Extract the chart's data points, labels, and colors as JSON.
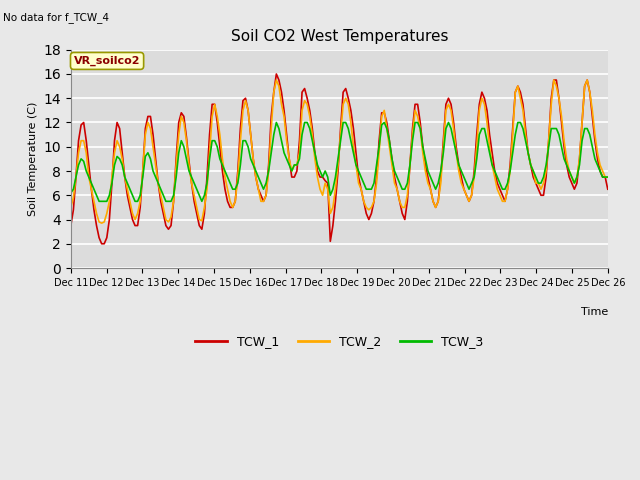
{
  "title": "Soil CO2 West Temperatures",
  "no_data_text": "No data for f_TCW_4",
  "annotation_text": "VR_soilco2",
  "ylabel": "Soil Temperature (C)",
  "xlabel": "Time",
  "ylim": [
    0,
    18
  ],
  "yticks": [
    0,
    2,
    4,
    6,
    8,
    10,
    12,
    14,
    16,
    18
  ],
  "background_color": "#e8e8e8",
  "plot_bg_color": "#dcdcdc",
  "legend": [
    "TCW_1",
    "TCW_2",
    "TCW_3"
  ],
  "colors": [
    "#cc0000",
    "#ffaa00",
    "#00bb00"
  ],
  "line_width": 1.2,
  "TCW_1": [
    3.5,
    4.8,
    7.5,
    10.5,
    11.8,
    12.0,
    10.5,
    8.5,
    6.5,
    4.8,
    3.5,
    2.5,
    2.0,
    2.0,
    2.5,
    4.0,
    7.0,
    10.5,
    12.0,
    11.5,
    9.5,
    7.5,
    6.0,
    5.0,
    4.0,
    3.5,
    3.5,
    5.0,
    8.0,
    11.5,
    12.5,
    12.5,
    11.0,
    9.0,
    7.0,
    5.5,
    4.5,
    3.5,
    3.2,
    3.5,
    5.5,
    9.0,
    12.0,
    12.8,
    12.5,
    10.8,
    8.8,
    7.0,
    5.5,
    4.5,
    3.5,
    3.2,
    4.5,
    7.5,
    11.0,
    13.5,
    13.5,
    12.0,
    10.0,
    8.0,
    6.5,
    5.5,
    5.0,
    5.0,
    5.5,
    8.0,
    11.5,
    13.8,
    14.0,
    13.0,
    11.0,
    9.0,
    7.5,
    6.5,
    6.0,
    5.5,
    6.0,
    8.5,
    12.5,
    14.5,
    16.0,
    15.5,
    14.5,
    13.0,
    11.0,
    9.0,
    7.5,
    7.5,
    8.0,
    10.5,
    14.5,
    14.8,
    14.0,
    13.0,
    11.5,
    9.5,
    8.0,
    7.5,
    7.5,
    7.2,
    7.0,
    2.2,
    3.5,
    5.5,
    8.0,
    11.5,
    14.5,
    14.8,
    14.0,
    13.0,
    11.5,
    9.5,
    7.5,
    6.5,
    5.5,
    4.5,
    4.0,
    4.5,
    5.5,
    7.5,
    10.5,
    12.8,
    12.8,
    12.0,
    10.5,
    9.0,
    7.5,
    6.5,
    5.5,
    4.5,
    4.0,
    5.5,
    8.5,
    11.5,
    13.5,
    13.5,
    12.0,
    10.0,
    8.5,
    7.5,
    6.5,
    5.5,
    5.0,
    5.5,
    7.5,
    10.5,
    13.5,
    14.0,
    13.5,
    12.0,
    10.0,
    8.5,
    7.5,
    6.5,
    6.0,
    5.5,
    6.0,
    8.0,
    11.0,
    13.5,
    14.5,
    14.0,
    13.0,
    11.0,
    9.5,
    8.0,
    7.0,
    6.5,
    6.0,
    5.5,
    6.5,
    8.5,
    11.5,
    14.5,
    15.0,
    14.5,
    13.5,
    11.5,
    9.5,
    8.5,
    7.5,
    7.0,
    6.5,
    6.0,
    6.0,
    7.5,
    10.5,
    14.0,
    15.5,
    15.5,
    14.0,
    12.0,
    10.0,
    8.5,
    7.5,
    7.0,
    6.5,
    7.0,
    9.0,
    12.0,
    15.0,
    15.5,
    14.5,
    12.5,
    10.5,
    9.0,
    8.0,
    7.5,
    7.5,
    6.5
  ],
  "TCW_2": [
    5.0,
    5.8,
    7.5,
    9.5,
    10.5,
    10.5,
    9.5,
    7.5,
    6.5,
    5.5,
    4.5,
    3.8,
    3.7,
    3.8,
    4.5,
    5.5,
    7.5,
    9.5,
    10.5,
    10.0,
    9.0,
    7.5,
    6.5,
    5.5,
    4.5,
    4.0,
    4.5,
    5.5,
    8.0,
    11.0,
    12.0,
    11.5,
    10.0,
    8.5,
    7.0,
    6.0,
    5.0,
    4.0,
    3.8,
    4.2,
    5.5,
    8.5,
    11.0,
    12.5,
    12.0,
    10.5,
    8.5,
    7.0,
    6.0,
    5.0,
    4.0,
    3.9,
    5.0,
    6.5,
    9.5,
    12.5,
    13.5,
    12.5,
    11.0,
    9.0,
    7.5,
    6.5,
    5.5,
    5.0,
    5.5,
    7.5,
    10.5,
    13.0,
    13.8,
    13.0,
    11.0,
    9.0,
    7.5,
    6.5,
    5.5,
    5.5,
    6.0,
    8.0,
    11.5,
    14.5,
    15.5,
    15.0,
    13.5,
    12.5,
    10.5,
    9.0,
    8.0,
    8.5,
    8.5,
    9.5,
    13.0,
    13.8,
    13.5,
    12.5,
    11.0,
    9.0,
    7.5,
    6.5,
    6.0,
    7.0,
    6.5,
    4.5,
    5.0,
    6.5,
    8.5,
    11.0,
    13.5,
    14.0,
    13.5,
    12.0,
    10.0,
    8.5,
    7.0,
    6.5,
    5.5,
    5.0,
    4.8,
    5.0,
    5.5,
    7.0,
    9.5,
    12.5,
    13.0,
    11.5,
    10.0,
    8.5,
    7.0,
    6.5,
    5.5,
    5.0,
    5.0,
    6.0,
    8.5,
    11.0,
    13.0,
    12.5,
    11.5,
    9.5,
    8.0,
    7.0,
    6.5,
    5.5,
    5.0,
    5.5,
    7.0,
    10.0,
    13.0,
    13.5,
    13.0,
    11.5,
    9.5,
    8.0,
    7.0,
    6.5,
    6.0,
    5.5,
    6.0,
    7.5,
    10.0,
    13.0,
    14.0,
    13.5,
    12.0,
    10.0,
    8.5,
    7.5,
    6.5,
    6.0,
    5.5,
    5.5,
    6.5,
    8.0,
    11.0,
    14.5,
    15.0,
    14.0,
    13.0,
    11.0,
    9.5,
    8.5,
    8.0,
    7.0,
    7.0,
    6.5,
    7.0,
    8.0,
    10.5,
    13.5,
    15.5,
    15.0,
    14.0,
    12.5,
    10.5,
    9.0,
    8.0,
    7.5,
    7.0,
    7.5,
    9.0,
    12.0,
    15.0,
    15.5,
    14.5,
    13.0,
    11.0,
    9.5,
    8.5,
    8.0,
    7.5,
    7.5
  ],
  "TCW_3": [
    6.2,
    6.5,
    7.5,
    8.5,
    9.0,
    8.8,
    8.0,
    7.5,
    7.0,
    6.5,
    6.0,
    5.5,
    5.5,
    5.5,
    5.5,
    6.0,
    7.0,
    8.5,
    9.2,
    9.0,
    8.5,
    7.5,
    7.0,
    6.5,
    6.0,
    5.5,
    5.5,
    6.0,
    7.5,
    9.2,
    9.5,
    9.0,
    8.0,
    7.5,
    7.0,
    6.5,
    6.0,
    5.5,
    5.5,
    5.5,
    6.0,
    7.5,
    9.5,
    10.5,
    10.0,
    9.0,
    8.0,
    7.5,
    7.0,
    6.5,
    6.0,
    5.5,
    6.0,
    7.0,
    9.0,
    10.5,
    10.5,
    10.0,
    9.0,
    8.5,
    8.0,
    7.5,
    7.0,
    6.5,
    6.5,
    7.0,
    8.5,
    10.5,
    10.5,
    10.0,
    9.0,
    8.5,
    8.0,
    7.5,
    7.0,
    6.5,
    7.0,
    8.0,
    9.5,
    11.0,
    12.0,
    11.5,
    10.5,
    9.5,
    9.0,
    8.5,
    8.0,
    8.5,
    8.5,
    9.0,
    11.0,
    12.0,
    12.0,
    11.5,
    10.5,
    9.5,
    8.5,
    8.0,
    7.5,
    8.0,
    7.5,
    6.0,
    6.5,
    7.5,
    9.0,
    10.5,
    12.0,
    12.0,
    11.5,
    10.5,
    9.5,
    8.5,
    8.0,
    7.5,
    7.0,
    6.5,
    6.5,
    6.5,
    7.0,
    8.5,
    10.0,
    11.8,
    12.0,
    11.5,
    10.5,
    9.0,
    8.0,
    7.5,
    7.0,
    6.5,
    6.5,
    7.0,
    8.5,
    10.5,
    12.0,
    12.0,
    11.5,
    10.0,
    9.0,
    8.0,
    7.5,
    7.0,
    6.5,
    7.0,
    8.0,
    9.5,
    11.5,
    12.0,
    11.5,
    10.5,
    9.5,
    8.5,
    8.0,
    7.5,
    7.0,
    6.5,
    7.0,
    7.5,
    9.0,
    11.0,
    11.5,
    11.5,
    10.5,
    9.5,
    8.5,
    8.0,
    7.5,
    7.0,
    6.5,
    6.5,
    7.0,
    8.0,
    9.5,
    11.0,
    12.0,
    12.0,
    11.5,
    10.5,
    9.5,
    8.5,
    8.0,
    7.5,
    7.0,
    7.0,
    7.5,
    8.5,
    10.0,
    11.5,
    11.5,
    11.5,
    11.0,
    10.0,
    9.0,
    8.5,
    8.0,
    7.5,
    7.0,
    7.5,
    8.5,
    10.5,
    11.5,
    11.5,
    11.0,
    10.0,
    9.0,
    8.5,
    8.0,
    7.5,
    7.5,
    7.5
  ]
}
